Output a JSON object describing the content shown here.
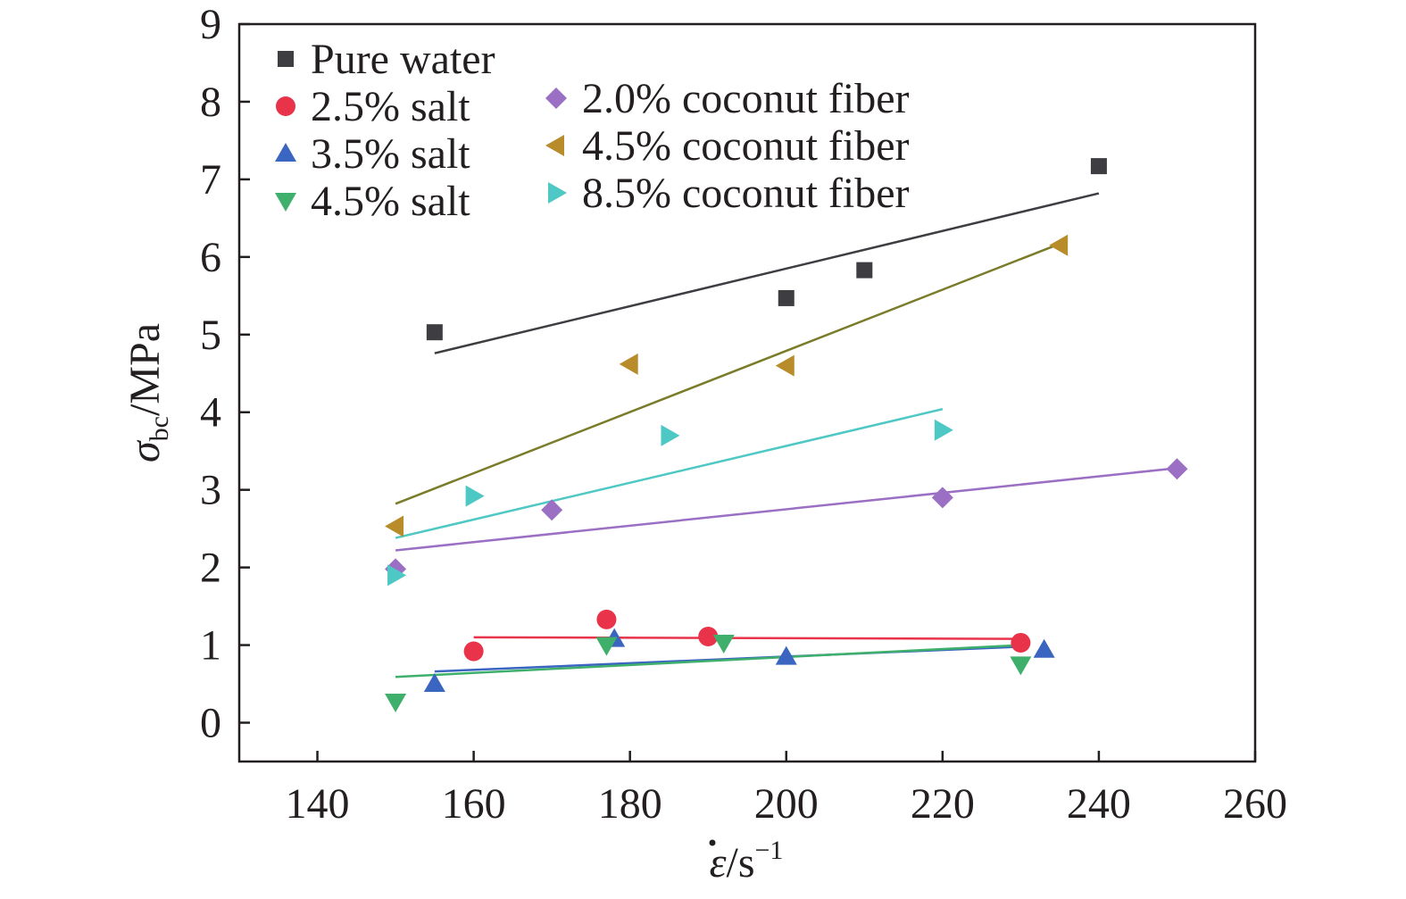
{
  "chart_data": {
    "type": "scatter",
    "xlabel": {
      "main": "ε",
      "unit": "/s",
      "exp": "−1"
    },
    "ylabel": {
      "main": "σ",
      "sub": "bc",
      "unit": "/MPa"
    },
    "xlim": [
      130,
      260
    ],
    "ylim": [
      -0.5,
      9
    ],
    "xticks": [
      140,
      160,
      180,
      200,
      220,
      240,
      260
    ],
    "yticks": [
      0,
      1,
      2,
      3,
      4,
      5,
      6,
      7,
      8,
      9
    ],
    "grid": false,
    "legend_placement": "top-left",
    "series": [
      {
        "name": "Pure water",
        "marker": "square",
        "color": "#3d3d42",
        "line_color": "#3d3d42",
        "x": [
          155,
          200,
          210,
          240
        ],
        "y": [
          5.03,
          5.47,
          5.83,
          7.17
        ],
        "fit": {
          "x": [
            155,
            240
          ],
          "y": [
            4.76,
            6.82
          ]
        }
      },
      {
        "name": "2.5% salt",
        "marker": "circle",
        "color": "#e8334a",
        "line_color": "#e8334a",
        "x": [
          160,
          177,
          190,
          230
        ],
        "y": [
          0.92,
          1.33,
          1.11,
          1.03
        ],
        "fit": {
          "x": [
            160,
            230
          ],
          "y": [
            1.1,
            1.08
          ]
        }
      },
      {
        "name": "3.5% salt",
        "marker": "triangle-up",
        "color": "#3a65c0",
        "line_color": "#3a65c0",
        "x": [
          155,
          178,
          200,
          233
        ],
        "y": [
          0.5,
          1.08,
          0.85,
          0.94
        ],
        "fit": {
          "x": [
            155,
            230
          ],
          "y": [
            0.66,
            0.98
          ]
        }
      },
      {
        "name": "4.5% salt",
        "marker": "triangle-down",
        "color": "#3fb06b",
        "line_color": "#3fb06b",
        "x": [
          150,
          177,
          192,
          230
        ],
        "y": [
          0.27,
          1.0,
          1.03,
          0.75
        ],
        "fit": {
          "x": [
            150,
            230
          ],
          "y": [
            0.59,
            1.0
          ]
        }
      },
      {
        "name": "2.0% coconut fiber",
        "marker": "diamond",
        "color": "#9a6fc4",
        "line_color": "#9a6fc4",
        "x": [
          150,
          170,
          220,
          250
        ],
        "y": [
          1.98,
          2.74,
          2.9,
          3.27
        ],
        "fit": {
          "x": [
            150,
            250
          ],
          "y": [
            2.22,
            3.28
          ]
        }
      },
      {
        "name": "4.5% coconut fiber",
        "marker": "triangle-left",
        "color": "#b98c2b",
        "line_color": "#7a7c2a",
        "x": [
          150,
          180,
          200,
          235
        ],
        "y": [
          2.53,
          4.62,
          4.6,
          6.15
        ],
        "fit": {
          "x": [
            150,
            235
          ],
          "y": [
            2.82,
            6.17
          ]
        }
      },
      {
        "name": "8.5% coconut fiber",
        "marker": "triangle-right",
        "color": "#4ec8c4",
        "line_color": "#4ec8c4",
        "x": [
          150,
          160,
          185,
          220
        ],
        "y": [
          1.9,
          2.92,
          3.7,
          3.77
        ],
        "fit": {
          "x": [
            150,
            220
          ],
          "y": [
            2.38,
            4.04
          ]
        }
      }
    ]
  }
}
